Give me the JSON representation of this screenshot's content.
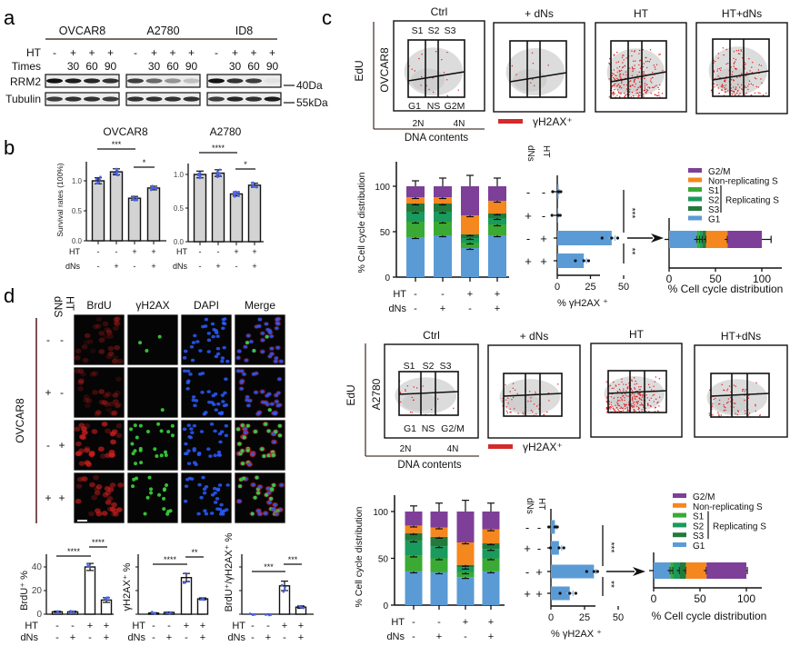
{
  "panels": {
    "a": "a",
    "b": "b",
    "c": "c",
    "d": "d"
  },
  "conditions": {
    "ht_label": "HT",
    "dns_label": "dNs",
    "ht": [
      "-",
      "-",
      "+",
      "+"
    ],
    "dns": [
      "-",
      "+",
      "-",
      "+"
    ]
  },
  "panel_a": {
    "cell_lines": [
      "OVCAR8",
      "A2780",
      "ID8"
    ],
    "ht_label": "HT",
    "times_label": "Times",
    "ht": [
      "-",
      "+",
      "+",
      "+"
    ],
    "times": [
      "",
      "30",
      "60",
      "90"
    ],
    "blots": [
      "RRM2",
      "Tubulin"
    ],
    "markers": [
      "40Da",
      "55kDa"
    ],
    "band_intensity": {
      "RRM2": [
        [
          1.0,
          0.95,
          0.9,
          0.85
        ],
        [
          0.8,
          0.6,
          0.4,
          0.2
        ],
        [
          1.0,
          0.85,
          0.8,
          0.05
        ]
      ],
      "Tubulin": [
        [
          0.8,
          0.85,
          0.85,
          0.8
        ],
        [
          0.85,
          0.85,
          0.85,
          0.85
        ],
        [
          0.8,
          0.9,
          0.85,
          0.95
        ]
      ]
    }
  },
  "panel_c": {
    "series_colors": {
      "G1": "#5b9bd5",
      "S1": "#3aaa35",
      "S2": "#1a9a5c",
      "S3": "#237a3a",
      "NS": "#f5871f",
      "G2M": "#7e3f98"
    },
    "legend": [
      {
        "key": "G2M",
        "label": "G2/M"
      },
      {
        "key": "NS",
        "label": "Non-replicating S"
      },
      {
        "key": "S1",
        "label": "S1"
      },
      {
        "key": "S2",
        "label": "S2"
      },
      {
        "key": "S3",
        "label": "S3"
      },
      {
        "key": "G1",
        "label": "G1"
      }
    ],
    "replicating_label": "Replicating S",
    "flow": [
      {
        "cell_line": "OVCAR8",
        "conditions": [
          "Ctrl",
          "+ dNs",
          "HT",
          "HT+dNs"
        ],
        "y_axis": "EdU",
        "x_axis": "DNA contents",
        "x_ticks": [
          "2N",
          "4N"
        ],
        "gates_top": [
          "S1",
          "S2",
          "S3"
        ],
        "gates_bottom": [
          "G1",
          "NS",
          "G2M"
        ],
        "legend": "γH2AX⁺",
        "positive_density": [
          0.08,
          0.04,
          1.0,
          0.6
        ]
      },
      {
        "cell_line": "A2780",
        "conditions": [
          "Ctrl",
          "+ dNs",
          "HT",
          "HT+dNs"
        ],
        "y_axis": "EdU",
        "x_axis": "DNA contents",
        "x_ticks": [
          "2N",
          "4N"
        ],
        "gates_top": [
          "S1",
          "S2",
          "S3"
        ],
        "gates_bottom": [
          "G1",
          "NS",
          "G2/M"
        ],
        "legend": "γH2AX⁺",
        "positive_density": [
          0.08,
          0.2,
          1.0,
          0.3
        ]
      }
    ]
  },
  "panel_d": {
    "cell_line": "OVCAR8",
    "header_dns": "dNS",
    "header_ht": "HT",
    "channels": [
      "BrdU",
      "γH2AX",
      "DAPI",
      "Merge"
    ],
    "rows": [
      {
        "dns": "-",
        "ht": "-"
      },
      {
        "dns": "+",
        "ht": "-"
      },
      {
        "dns": "-",
        "ht": "+"
      },
      {
        "dns": "+",
        "ht": "+"
      }
    ],
    "brdu_intensity": [
      0.45,
      0.5,
      0.95,
      0.85
    ],
    "gh2ax_intensity": [
      0.08,
      0.08,
      0.85,
      0.6
    ]
  },
  "chart_data": [
    {
      "type": "bar",
      "title": "OVCAR8",
      "ylabel": "Survival rates (100%)",
      "categories": [
        "HT-/dNs-",
        "HT-/dNs+",
        "HT+/dNs-",
        "HT+/dNs+"
      ],
      "values": [
        1.0,
        1.15,
        0.71,
        0.88
      ],
      "errors": [
        0.05,
        0.05,
        0.03,
        0.03
      ],
      "ylim": [
        0,
        1.3
      ],
      "yticks": [
        0,
        0.5,
        1.0
      ],
      "ytick_labels": [
        "0.0",
        "0.5",
        "1.0"
      ],
      "significance": [
        {
          "pair": [
            0,
            2
          ],
          "label": "***"
        },
        {
          "pair": [
            2,
            3
          ],
          "label": "*"
        }
      ]
    },
    {
      "type": "bar",
      "title": "A2780",
      "ylabel": "",
      "categories": [
        "HT-/dNs-",
        "HT-/dNs+",
        "HT+/dNs-",
        "HT+/dNs+"
      ],
      "values": [
        1.0,
        1.02,
        0.71,
        0.84
      ],
      "errors": [
        0.05,
        0.05,
        0.03,
        0.03
      ],
      "ylim": [
        0,
        1.2
      ],
      "yticks": [
        0,
        0.5,
        1.0
      ],
      "ytick_labels": [
        "0.0",
        "0.5",
        "1.0"
      ],
      "significance": [
        {
          "pair": [
            0,
            2
          ],
          "label": "****"
        },
        {
          "pair": [
            2,
            3
          ],
          "label": "*"
        }
      ]
    },
    {
      "type": "bar",
      "stacked": true,
      "cell_line": "OVCAR8",
      "ylabel": "% Cell cycle distribution",
      "categories": [
        "HT-/dNs-",
        "HT-/dNs+",
        "HT+/dNs-",
        "HT+/dNs+"
      ],
      "ylim": [
        0,
        125
      ],
      "yticks": [
        0,
        50,
        100
      ],
      "ytick_labels": [
        "0",
        "50",
        "100"
      ],
      "series": [
        {
          "name": "G1",
          "values": [
            44,
            46,
            32,
            46
          ]
        },
        {
          "name": "S1",
          "values": [
            17,
            15,
            6,
            12
          ]
        },
        {
          "name": "S2",
          "values": [
            11,
            11,
            5,
            7
          ]
        },
        {
          "name": "S3",
          "values": [
            9,
            9,
            4,
            5
          ]
        },
        {
          "name": "NS",
          "values": [
            7,
            7,
            21,
            14
          ]
        },
        {
          "name": "G2M",
          "values": [
            12,
            12,
            32,
            16
          ]
        }
      ]
    },
    {
      "type": "bar",
      "orientation": "horizontal",
      "cell_line": "OVCAR8",
      "xlabel": "% γH2AX ⁺",
      "categories": [
        "HT-/dNs-",
        "HT-/dNs+",
        "HT+/dNs-",
        "HT+/dNs+"
      ],
      "values": [
        1,
        0.5,
        41,
        20
      ],
      "errors": [
        0.5,
        0.3,
        2.5,
        2
      ],
      "xlim": [
        0,
        65
      ],
      "xticks": [
        0,
        25,
        50
      ],
      "xtick_labels": [
        "0",
        "25",
        "50"
      ],
      "significance": [
        {
          "pair": [
            0,
            2
          ],
          "label": "***"
        },
        {
          "pair": [
            2,
            3
          ],
          "label": "**"
        }
      ]
    },
    {
      "type": "bar",
      "orientation": "horizontal",
      "stacked": true,
      "cell_line": "OVCAR8",
      "category": "HT",
      "xlabel": "% Cell cycle distribution",
      "xticks": [
        0,
        50,
        100
      ],
      "xtick_labels": [
        "0",
        "50",
        "100"
      ],
      "total_error": 10,
      "series": [
        {
          "name": "G1",
          "value": 30
        },
        {
          "name": "S1",
          "value": 3
        },
        {
          "name": "S2",
          "value": 3
        },
        {
          "name": "S3",
          "value": 4
        },
        {
          "name": "NS",
          "value": 23
        },
        {
          "name": "G2M",
          "value": 37
        }
      ]
    },
    {
      "type": "bar",
      "stacked": true,
      "cell_line": "A2780",
      "ylabel": "% Cell cycle distribution",
      "categories": [
        "HT-/dNs-",
        "HT-/dNs+",
        "HT+/dNs-",
        "HT+/dNs+"
      ],
      "ylim": [
        0,
        120
      ],
      "yticks": [
        0,
        50,
        100
      ],
      "ytick_labels": [
        "0",
        "50",
        "100"
      ],
      "series": [
        {
          "name": "G1",
          "values": [
            36,
            35,
            30,
            36
          ]
        },
        {
          "name": "S1",
          "values": [
            17,
            15,
            5,
            14
          ]
        },
        {
          "name": "S2",
          "values": [
            16,
            13,
            5,
            10
          ]
        },
        {
          "name": "S3",
          "values": [
            8,
            10,
            3,
            6
          ]
        },
        {
          "name": "NS",
          "values": [
            8,
            10,
            24,
            15
          ]
        },
        {
          "name": "G2M",
          "values": [
            15,
            17,
            33,
            19
          ]
        }
      ]
    },
    {
      "type": "bar",
      "orientation": "horizontal",
      "cell_line": "A2780",
      "xlabel": "% γH2AX ⁺",
      "categories": [
        "HT-/dNs-",
        "HT-/dNs+",
        "HT+/dNs-",
        "HT+/dNs+"
      ],
      "values": [
        3,
        6,
        32,
        14
      ],
      "errors": [
        1,
        2,
        1.5,
        2.5
      ],
      "xlim": [
        0,
        65
      ],
      "xticks": [
        0,
        25,
        50
      ],
      "xtick_labels": [
        "0",
        "25",
        "50"
      ],
      "significance": [
        {
          "pair": [
            0,
            2
          ],
          "label": "***"
        },
        {
          "pair": [
            2,
            3
          ],
          "label": "**"
        }
      ]
    },
    {
      "type": "bar",
      "orientation": "horizontal",
      "stacked": true,
      "cell_line": "A2780",
      "category": "HT",
      "xlabel": "% Cell cycle distribution",
      "xticks": [
        0,
        50,
        100
      ],
      "xtick_labels": [
        "0",
        "50",
        "100"
      ],
      "total_error": 1,
      "series": [
        {
          "name": "G1",
          "value": 18
        },
        {
          "name": "S1",
          "value": 3
        },
        {
          "name": "S2",
          "value": 7
        },
        {
          "name": "S3",
          "value": 7
        },
        {
          "name": "NS",
          "value": 22
        },
        {
          "name": "G2M",
          "value": 43
        }
      ]
    },
    {
      "type": "bar",
      "ylabel": "BrdU⁺ %",
      "categories": [
        "HT-/dNs-",
        "HT-/dNs+",
        "HT+/dNs-",
        "HT+/dNs+"
      ],
      "values": [
        2,
        2,
        40,
        12
      ],
      "errors": [
        0.5,
        0.5,
        3,
        2
      ],
      "ylim": [
        0,
        50
      ],
      "yticks": [
        0,
        20,
        40
      ],
      "ytick_labels": [
        "0",
        "20",
        "40"
      ],
      "significance": [
        {
          "pair": [
            0,
            2
          ],
          "label": "****"
        },
        {
          "pair": [
            2,
            3
          ],
          "label": "****"
        }
      ]
    },
    {
      "type": "bar",
      "ylabel": "γH2AX⁺ %",
      "categories": [
        "HT-/dNs-",
        "HT-/dNs+",
        "HT+/dNs-",
        "HT+/dNs+"
      ],
      "values": [
        1,
        1.5,
        31,
        13
      ],
      "errors": [
        0.3,
        0.3,
        3.5,
        0.8
      ],
      "ylim": [
        0,
        50
      ],
      "yticks": [
        0,
        20,
        40
      ],
      "significance": [
        {
          "pair": [
            0,
            2
          ],
          "label": "****"
        },
        {
          "pair": [
            2,
            3
          ],
          "label": "**"
        }
      ]
    },
    {
      "type": "bar",
      "ylabel": "BrdU⁺/γH2AX⁺ %",
      "categories": [
        "HT-/dNs-",
        "HT-/dNs+",
        "HT+/dNs-",
        "HT+/dNs+"
      ],
      "values": [
        0,
        0,
        24,
        6
      ],
      "errors": [
        0,
        0,
        4,
        1
      ],
      "ylim": [
        0,
        50
      ],
      "yticks": [
        0,
        20,
        40
      ],
      "significance": [
        {
          "pair": [
            0,
            2
          ],
          "label": "***"
        },
        {
          "pair": [
            2,
            3
          ],
          "label": "***"
        }
      ]
    }
  ]
}
